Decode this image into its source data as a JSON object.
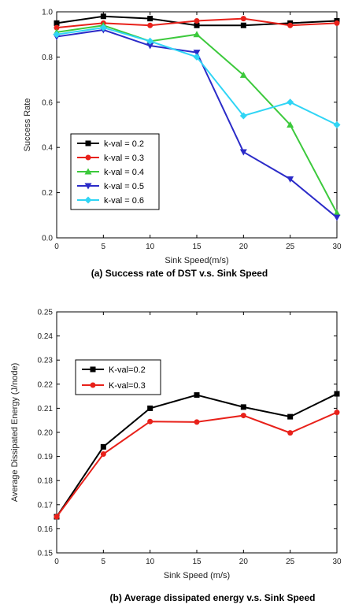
{
  "chart_data": [
    {
      "type": "line",
      "caption": "(a) Success rate of DST v.s. Sink Speed",
      "xlabel": "Sink Speed(m/s)",
      "ylabel": "Success Rate",
      "xlim": [
        0,
        30
      ],
      "ylim": [
        0.0,
        1.0
      ],
      "xticks": [
        "0",
        "5",
        "10",
        "15",
        "20",
        "25",
        "30"
      ],
      "yticks": [
        "0.0",
        "0.2",
        "0.4",
        "0.6",
        "0.8",
        "1.0"
      ],
      "x": [
        0,
        5,
        10,
        15,
        20,
        25,
        30
      ],
      "legend_position": "bottom-left",
      "series": [
        {
          "name": "k-val = 0.2",
          "color": "#000000",
          "marker": "square",
          "values": [
            0.95,
            0.98,
            0.97,
            0.94,
            0.94,
            0.95,
            0.96
          ]
        },
        {
          "name": "k-val = 0.3",
          "color": "#e8211a",
          "marker": "circle",
          "values": [
            0.93,
            0.95,
            0.94,
            0.96,
            0.97,
            0.94,
            0.95
          ]
        },
        {
          "name": "k-val = 0.4",
          "color": "#3cc93c",
          "marker": "triangle-up",
          "values": [
            0.91,
            0.94,
            0.87,
            0.9,
            0.72,
            0.5,
            0.11
          ]
        },
        {
          "name": "k-val = 0.5",
          "color": "#2b2bc8",
          "marker": "triangle-down",
          "values": [
            0.89,
            0.92,
            0.85,
            0.82,
            0.38,
            0.26,
            0.09
          ]
        },
        {
          "name": "k-val = 0.6",
          "color": "#30d5f5",
          "marker": "diamond",
          "values": [
            0.9,
            0.93,
            0.87,
            0.8,
            0.54,
            0.6,
            0.5
          ]
        }
      ]
    },
    {
      "type": "line",
      "caption": "(b) Average dissipated energy v.s. Sink Speed",
      "xlabel": "Sink Speed (m/s)",
      "ylabel": "Average Dissipated Energy (J/node)",
      "xlim": [
        0,
        30
      ],
      "ylim": [
        0.15,
        0.25
      ],
      "xticks": [
        "0",
        "5",
        "10",
        "15",
        "20",
        "25",
        "30"
      ],
      "yticks": [
        "0.15",
        "0.16",
        "0.17",
        "0.18",
        "0.19",
        "0.20",
        "0.21",
        "0.22",
        "0.23",
        "0.24",
        "0.25"
      ],
      "x": [
        0,
        5,
        10,
        15,
        20,
        25,
        30
      ],
      "legend_position": "top-left",
      "series": [
        {
          "name": "K-val=0.2",
          "color": "#000000",
          "marker": "square",
          "values": [
            0.165,
            0.194,
            0.21,
            0.2155,
            0.2105,
            0.2065,
            0.216
          ]
        },
        {
          "name": "K-val=0.3",
          "color": "#e8211a",
          "marker": "circle",
          "values": [
            0.165,
            0.191,
            0.2045,
            0.2043,
            0.207,
            0.1998,
            0.2083
          ]
        }
      ]
    }
  ]
}
